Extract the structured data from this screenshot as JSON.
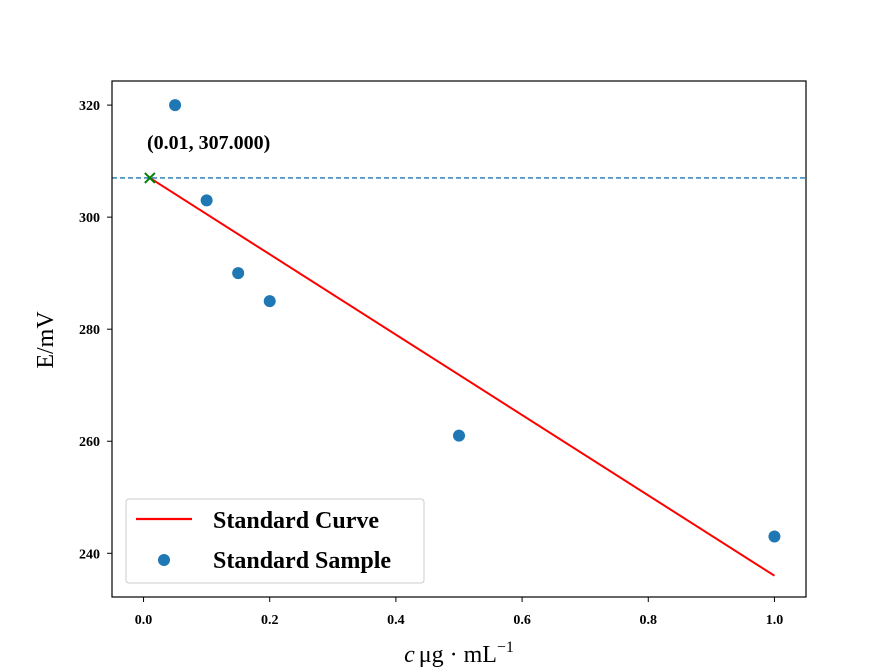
{
  "chart_data": {
    "type": "scatter",
    "xlabel": "c / μg · mL⁻¹",
    "xlabel_parts": {
      "var": "c",
      "unit": "μg · mL",
      "exp": "−1"
    },
    "ylabel": "E/mV",
    "xlim": [
      -0.05,
      1.05
    ],
    "ylim": [
      232.2,
      324.3
    ],
    "xticks": [
      0.0,
      0.2,
      0.4,
      0.6,
      0.8,
      1.0
    ],
    "xtick_labels": [
      "0.0",
      "0.2",
      "0.4",
      "0.6",
      "0.8",
      "1.0"
    ],
    "yticks": [
      240,
      260,
      280,
      300,
      320
    ],
    "ytick_labels": [
      "240",
      "260",
      "280",
      "300",
      "320"
    ],
    "grid": false,
    "legend_position": "lower-left",
    "series": [
      {
        "name": "Standard Curve",
        "kind": "line",
        "color": "#ff0000",
        "x": [
          0.01,
          1.0
        ],
        "y": [
          307.0,
          236.0
        ]
      },
      {
        "name": "Standard Sample",
        "kind": "scatter",
        "color": "#1f77b4",
        "x": [
          0.05,
          0.1,
          0.15,
          0.2,
          0.5,
          1.0
        ],
        "y": [
          320,
          303,
          290,
          285,
          261,
          243
        ]
      }
    ],
    "reference_line": {
      "y": 307.0,
      "style": "dashed",
      "color": "#1f77b4"
    },
    "marker": {
      "x": 0.01,
      "y": 307.0,
      "symbol": "x",
      "color": "#008000"
    },
    "annotation": {
      "text": "(0.01, 307.000)",
      "x": 0.01,
      "y": 307.0
    }
  }
}
